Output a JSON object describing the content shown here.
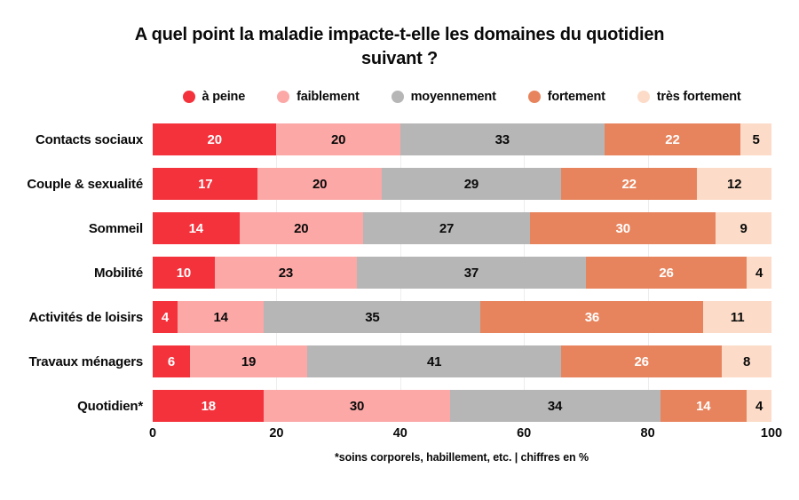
{
  "chart_data": {
    "type": "bar",
    "orientation": "horizontal",
    "stacked": true,
    "title": "A quel point la maladie impacte-t-elle les domaines du quotidien suivant ?",
    "note": "*soins corporels, habillement, etc. | chiffres en %",
    "categories": [
      "Contacts sociaux",
      "Couple & sexualité",
      "Sommeil",
      "Mobilité",
      "Activités de loisirs",
      "Travaux ménagers",
      "Quotidien*"
    ],
    "series": [
      {
        "name": "à peine",
        "color": "#f4323c",
        "label_color": "#ffffff",
        "values": [
          20,
          17,
          14,
          10,
          4,
          6,
          18
        ]
      },
      {
        "name": "faiblement",
        "color": "#fca8a7",
        "label_color": "#0a0a0a",
        "values": [
          20,
          20,
          20,
          23,
          14,
          19,
          30
        ]
      },
      {
        "name": "moyennement",
        "color": "#b6b6b6",
        "label_color": "#0a0a0a",
        "values": [
          33,
          29,
          27,
          37,
          35,
          41,
          34
        ]
      },
      {
        "name": "fortement",
        "color": "#e8845d",
        "label_color": "#ffffff",
        "values": [
          22,
          22,
          30,
          26,
          36,
          26,
          14
        ]
      },
      {
        "name": "très fortement",
        "color": "#fcdcc8",
        "label_color": "#0a0a0a",
        "values": [
          5,
          12,
          9,
          4,
          11,
          8,
          4
        ]
      }
    ],
    "x_ticks": [
      0,
      20,
      40,
      60,
      80,
      100
    ],
    "xlim": [
      0,
      100
    ],
    "legend_position": "top",
    "grid": "vertical-light-gray"
  }
}
